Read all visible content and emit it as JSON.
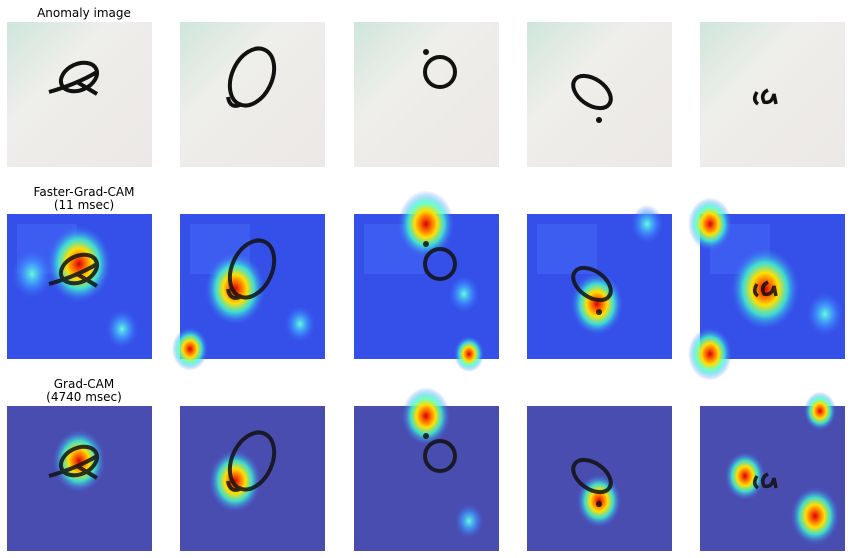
{
  "rows": [
    {
      "title": [
        "Anomaly image"
      ]
    },
    {
      "title": [
        "Faster-Grad-CAM",
        "(11 msec)"
      ]
    },
    {
      "title": [
        "Grad-CAM",
        "(4740 msec)"
      ]
    }
  ]
}
